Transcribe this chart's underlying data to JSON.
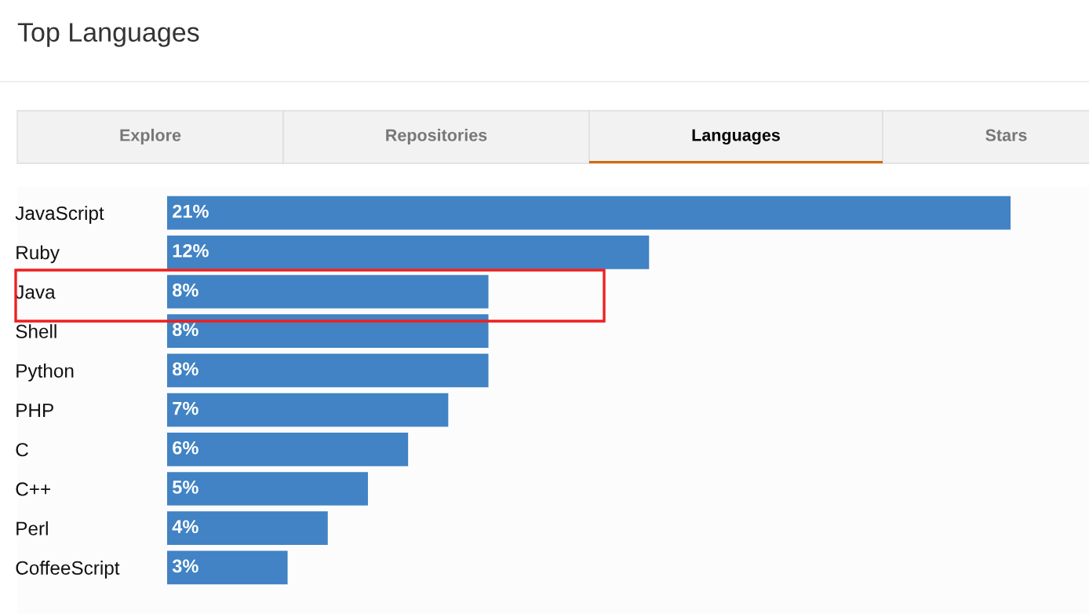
{
  "chart_data": {
    "type": "bar",
    "orientation": "horizontal",
    "title": "Top Languages",
    "annotations": [
      "Explore",
      "Repositories",
      "Languages",
      "Stars"
    ],
    "categories": [
      "JavaScript",
      "Ruby",
      "Java",
      "Shell",
      "Python",
      "PHP",
      "C",
      "C++",
      "Perl",
      "CoffeeScript"
    ],
    "values": [
      21,
      12,
      8,
      8,
      8,
      7,
      6,
      5,
      4,
      3
    ],
    "value_labels": [
      "21%",
      "12%",
      "8%",
      "8%",
      "8%",
      "7%",
      "6%",
      "5%",
      "4%",
      "3%"
    ],
    "color": "#4183c4",
    "tick_labels": "y"
  }
}
